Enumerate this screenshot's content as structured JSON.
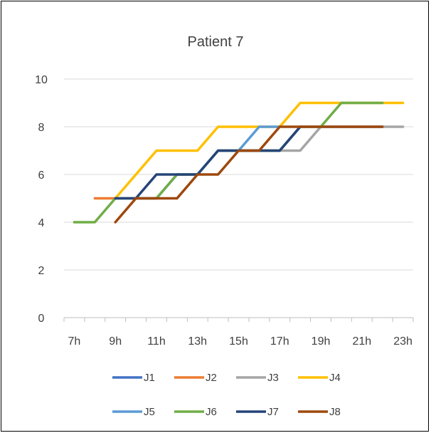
{
  "chart_data": {
    "type": "line",
    "title": "Patient 7",
    "xlabel": "",
    "ylabel": "",
    "x_hours": [
      7,
      8,
      9,
      10,
      11,
      12,
      13,
      14,
      15,
      16,
      17,
      18,
      19,
      20,
      21,
      22,
      23
    ],
    "x_tick_labels": [
      "7h",
      "9h",
      "11h",
      "13h",
      "15h",
      "17h",
      "19h",
      "21h",
      "23h"
    ],
    "x_tick_hours": [
      7,
      9,
      11,
      13,
      15,
      17,
      19,
      21,
      23
    ],
    "xlim": [
      6.5,
      23.5
    ],
    "ylim": [
      0,
      10
    ],
    "y_ticks": [
      0,
      2,
      4,
      6,
      8,
      10
    ],
    "grid": "horizontal",
    "legend_position": "bottom",
    "series": [
      {
        "name": "J1",
        "color": "#4472C4",
        "values": [
          null,
          null,
          null,
          5,
          5,
          6,
          6,
          7,
          7,
          7,
          7,
          8,
          8,
          8,
          8,
          8,
          null
        ]
      },
      {
        "name": "J2",
        "color": "#ED7D31",
        "values": [
          null,
          5,
          5,
          null,
          null,
          null,
          null,
          null,
          null,
          null,
          null,
          null,
          null,
          null,
          null,
          null,
          null
        ]
      },
      {
        "name": "J3",
        "color": "#A5A5A5",
        "values": [
          null,
          null,
          null,
          null,
          null,
          null,
          null,
          null,
          null,
          null,
          7,
          7,
          8,
          8,
          8,
          8,
          8
        ]
      },
      {
        "name": "J4",
        "color": "#FFC000",
        "values": [
          null,
          null,
          5,
          6,
          7,
          7,
          7,
          8,
          8,
          8,
          8,
          9,
          9,
          9,
          9,
          9,
          9
        ]
      },
      {
        "name": "J5",
        "color": "#5B9BD5",
        "values": [
          null,
          null,
          null,
          null,
          null,
          null,
          null,
          null,
          7,
          8,
          8,
          null,
          null,
          null,
          null,
          null,
          null
        ]
      },
      {
        "name": "J6",
        "color": "#70AD47",
        "values": [
          4,
          4,
          5,
          5,
          5,
          6,
          6,
          7,
          7,
          7,
          7,
          8,
          8,
          9,
          9,
          9,
          null
        ]
      },
      {
        "name": "J7",
        "color": "#264478",
        "values": [
          null,
          null,
          5,
          5,
          6,
          6,
          6,
          7,
          7,
          7,
          7,
          8,
          null,
          null,
          null,
          null,
          null
        ]
      },
      {
        "name": "J8",
        "color": "#9E480E",
        "values": [
          null,
          null,
          4,
          5,
          5,
          5,
          6,
          6,
          7,
          7,
          8,
          8,
          8,
          8,
          8,
          8,
          null
        ]
      }
    ]
  }
}
